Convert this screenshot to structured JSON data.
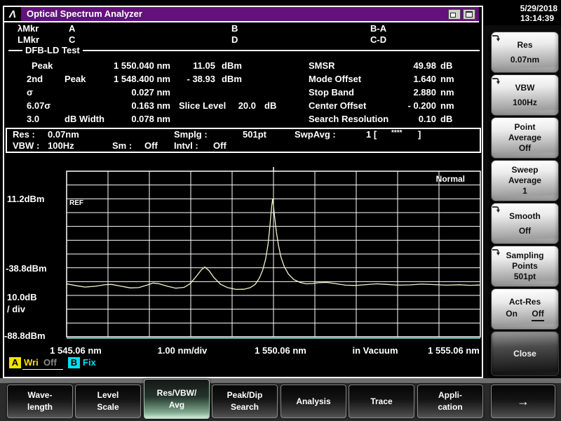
{
  "titlebar": {
    "title": "Optical Spectrum Analyzer",
    "logo_glyph": "Λ"
  },
  "datetime": {
    "date": "5/29/2018",
    "time": "13:14:39"
  },
  "markers": {
    "row1_label": "λMkr",
    "row2_label": "LMkr",
    "a": "A",
    "b": "B",
    "ba": "B-A",
    "c": "C",
    "d": "D",
    "cd": "C-D"
  },
  "analysis": {
    "section_title": "DFB-LD Test",
    "peak": {
      "label": "Peak",
      "wl": "1 550.040 nm",
      "lvl": "11.05",
      "lvl_unit": "dBm"
    },
    "peak2": {
      "label1": "2nd",
      "label2": "Peak",
      "wl": "1 548.400 nm",
      "lvl": "- 38.93",
      "lvl_unit": "dBm"
    },
    "sigma": {
      "label": "σ",
      "wl": "0.027 nm"
    },
    "sigma6": {
      "label": "6.07σ",
      "wl": "0.163 nm"
    },
    "slice": {
      "label": "Slice Level",
      "value": "20.0",
      "unit": "dB"
    },
    "width3db": {
      "label1": "3.0",
      "label2": "dB Width",
      "wl": "0.078 nm"
    },
    "smsr": {
      "label": "SMSR",
      "value": "49.98",
      "unit": "dB"
    },
    "mode_offset": {
      "label": "Mode Offset",
      "value": "1.640",
      "unit": "nm"
    },
    "stop_band": {
      "label": "Stop Band",
      "value": "2.880",
      "unit": "nm"
    },
    "center_offset": {
      "label": "Center Offset",
      "value": "- 0.200",
      "unit": "nm"
    },
    "search_res": {
      "label": "Search Resolution",
      "value": "0.10",
      "unit": "dB"
    }
  },
  "status": {
    "res_label": "Res :",
    "res": "0.07nm",
    "vbw_label": "VBW :",
    "vbw": "100Hz",
    "sm_label": "Sm :",
    "sm": "Off",
    "intvl_label": "Intvl :",
    "intvl": "Off",
    "smplg_label": "Smplg :",
    "smplg": "501pt",
    "swpavg_label": "SwpAvg :",
    "swpavg_value": "1 [",
    "swpavg_stars": "****",
    "swpavg_close": "]"
  },
  "chart_data": {
    "type": "line",
    "mode": "Normal",
    "ref_marker": "REF",
    "y_axis": {
      "ref_level_dbm": 11.2,
      "db_per_div": 10.0,
      "labels": {
        "ref": "11.2dBm",
        "mid": "-38.8dBm",
        "scale": "10.0dB",
        "scale2": "/ div",
        "bottom": "-88.8dBm"
      }
    },
    "x_axis": {
      "start_nm": 1545.06,
      "stop_nm": 1555.06,
      "labels": {
        "start": "1 545.06 nm",
        "per_div": "1.00 nm/div",
        "center": "1 550.06 nm",
        "medium": "in Vacuum",
        "stop": "1 555.06 nm"
      }
    },
    "grid": {
      "cols": 10,
      "rows": 12
    },
    "series": [
      {
        "name": "Trace A",
        "color": "#f7f3c9",
        "points": [
          [
            1545.06,
            -51.2
          ],
          [
            1545.3,
            -52.6
          ],
          [
            1545.5,
            -53.6
          ],
          [
            1545.75,
            -53.0
          ],
          [
            1546.0,
            -51.8
          ],
          [
            1546.15,
            -51.6
          ],
          [
            1546.35,
            -52.8
          ],
          [
            1546.6,
            -54.2
          ],
          [
            1546.8,
            -54.0
          ],
          [
            1547.0,
            -52.2
          ],
          [
            1547.15,
            -50.6
          ],
          [
            1547.3,
            -51.2
          ],
          [
            1547.5,
            -53.0
          ],
          [
            1547.7,
            -54.4
          ],
          [
            1547.9,
            -53.8
          ],
          [
            1548.05,
            -51.0
          ],
          [
            1548.2,
            -45.5
          ],
          [
            1548.32,
            -40.8
          ],
          [
            1548.4,
            -38.9
          ],
          [
            1548.5,
            -41.5
          ],
          [
            1548.62,
            -46.5
          ],
          [
            1548.78,
            -51.5
          ],
          [
            1548.95,
            -54.0
          ],
          [
            1549.15,
            -55.3
          ],
          [
            1549.35,
            -55.2
          ],
          [
            1549.5,
            -54.0
          ],
          [
            1549.62,
            -51.5
          ],
          [
            1549.72,
            -47.0
          ],
          [
            1549.8,
            -41.0
          ],
          [
            1549.87,
            -33.0
          ],
          [
            1549.93,
            -22.0
          ],
          [
            1549.97,
            -10.0
          ],
          [
            1550.0,
            0.5
          ],
          [
            1550.02,
            6.5
          ],
          [
            1550.04,
            11.05
          ],
          [
            1550.06,
            6.0
          ],
          [
            1550.09,
            -3.0
          ],
          [
            1550.13,
            -13.0
          ],
          [
            1550.18,
            -23.0
          ],
          [
            1550.24,
            -31.5
          ],
          [
            1550.32,
            -38.5
          ],
          [
            1550.42,
            -44.0
          ],
          [
            1550.55,
            -48.0
          ],
          [
            1550.7,
            -50.2
          ],
          [
            1550.85,
            -51.2
          ],
          [
            1551.0,
            -51.0
          ],
          [
            1551.15,
            -50.4
          ],
          [
            1551.35,
            -50.2
          ],
          [
            1551.55,
            -51.0
          ],
          [
            1551.8,
            -52.2
          ],
          [
            1552.05,
            -52.4
          ],
          [
            1552.3,
            -51.8
          ],
          [
            1552.55,
            -51.2
          ],
          [
            1552.8,
            -51.6
          ],
          [
            1553.05,
            -52.2
          ],
          [
            1553.35,
            -52.0
          ],
          [
            1553.65,
            -51.4
          ],
          [
            1553.95,
            -51.8
          ],
          [
            1554.25,
            -52.2
          ],
          [
            1554.55,
            -51.9
          ],
          [
            1554.8,
            -52.3
          ],
          [
            1555.06,
            -52.1
          ]
        ]
      }
    ]
  },
  "trace_legend": {
    "a_key": "A",
    "a_mode": "Wri",
    "a_state": "Off",
    "b_key": "B",
    "b_mode": "Fix"
  },
  "sidebar": {
    "buttons": [
      {
        "line1": "Res",
        "line2": "0.07nm",
        "has_arrow": true
      },
      {
        "line1": "VBW",
        "line2": "100Hz",
        "has_arrow": true
      },
      {
        "line1": "Point",
        "line2": "Average",
        "line3": "Off",
        "has_arrow": false
      },
      {
        "line1": "Sweep",
        "line2": "Average",
        "line3": "1",
        "has_arrow": false
      },
      {
        "line1": "Smooth",
        "line2": "Off",
        "has_arrow": true
      },
      {
        "line1": "Sampling",
        "line2": "Points",
        "line3": "501pt",
        "has_arrow": true
      },
      {
        "line1": "Act-Res",
        "on_label": "On",
        "off_label": "Off",
        "has_arrow": false
      },
      {
        "line1": "Close",
        "has_arrow": false
      }
    ]
  },
  "bottom_menu": {
    "items": [
      {
        "line1": "Wave-",
        "line2": "length"
      },
      {
        "line1": "Level",
        "line2": "Scale"
      },
      {
        "line1": "Res/VBW/",
        "line2": "Avg",
        "selected": true
      },
      {
        "line1": "Peak/Dip",
        "line2": "Search"
      },
      {
        "line1": "Analysis"
      },
      {
        "line1": "Trace"
      },
      {
        "line1": "Appli-",
        "line2": "cation"
      },
      {
        "line1": "→",
        "is_arrow": true
      }
    ]
  },
  "colors": {
    "titlebar": "#63117b",
    "trace": "#f7f3c9",
    "grid": "#ffffff",
    "baseline_axis": "#7fd8d8",
    "trace_a_badge": "#f2e300",
    "trace_b_badge": "#00dff2",
    "selected_tab_glow": "#d4ecd9"
  }
}
